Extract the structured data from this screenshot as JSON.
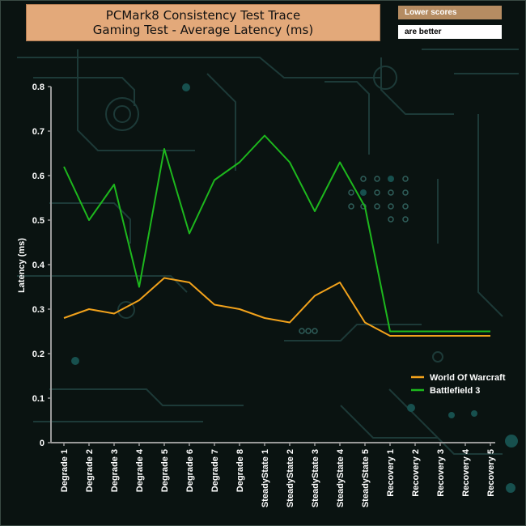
{
  "header": {
    "title_line1": "PCMark8 Consistency Test Trace",
    "title_line2": "Gaming Test -  Average Latency (ms)"
  },
  "note": {
    "line1": "Lower scores",
    "line2": "are better"
  },
  "chart_data": {
    "type": "line",
    "title": "PCMark8 Consistency Test Trace Gaming Test -  Average Latency (ms)",
    "xlabel": "",
    "ylabel": "Latency (ms)",
    "ylim": [
      0,
      0.8
    ],
    "yticks": [
      "0",
      "0.1",
      "0.2",
      "0.3",
      "0.4",
      "0.5",
      "0.6",
      "0.7",
      "0.8"
    ],
    "grid": false,
    "legend_position": "right",
    "categories": [
      "Degrade 1",
      "Degrade 2",
      "Degrade 3",
      "Degrade 4",
      "Degrade 5",
      "Degrade 6",
      "Degrade 7",
      "Degrade 8",
      "SteadyState 1",
      "SteadyState 2",
      "SteadyState 3",
      "SteadyState 4",
      "SteadyState 5",
      "Recovery 1",
      "Recovery 2",
      "Recovery 3",
      "Recovery 4",
      "Recovery 5"
    ],
    "series": [
      {
        "name": "World Of Warcraft",
        "color": "#f2a21b",
        "values": [
          0.28,
          0.3,
          0.29,
          0.32,
          0.37,
          0.36,
          0.31,
          0.3,
          0.28,
          0.27,
          0.33,
          0.36,
          0.27,
          0.24,
          0.24,
          0.24,
          0.24,
          0.24
        ]
      },
      {
        "name": "Battlefield 3",
        "color": "#1db81d",
        "values": [
          0.62,
          0.5,
          0.58,
          0.35,
          0.66,
          0.47,
          0.59,
          0.63,
          0.69,
          0.63,
          0.52,
          0.63,
          0.53,
          0.25,
          0.25,
          0.25,
          0.25,
          0.25
        ]
      }
    ]
  }
}
